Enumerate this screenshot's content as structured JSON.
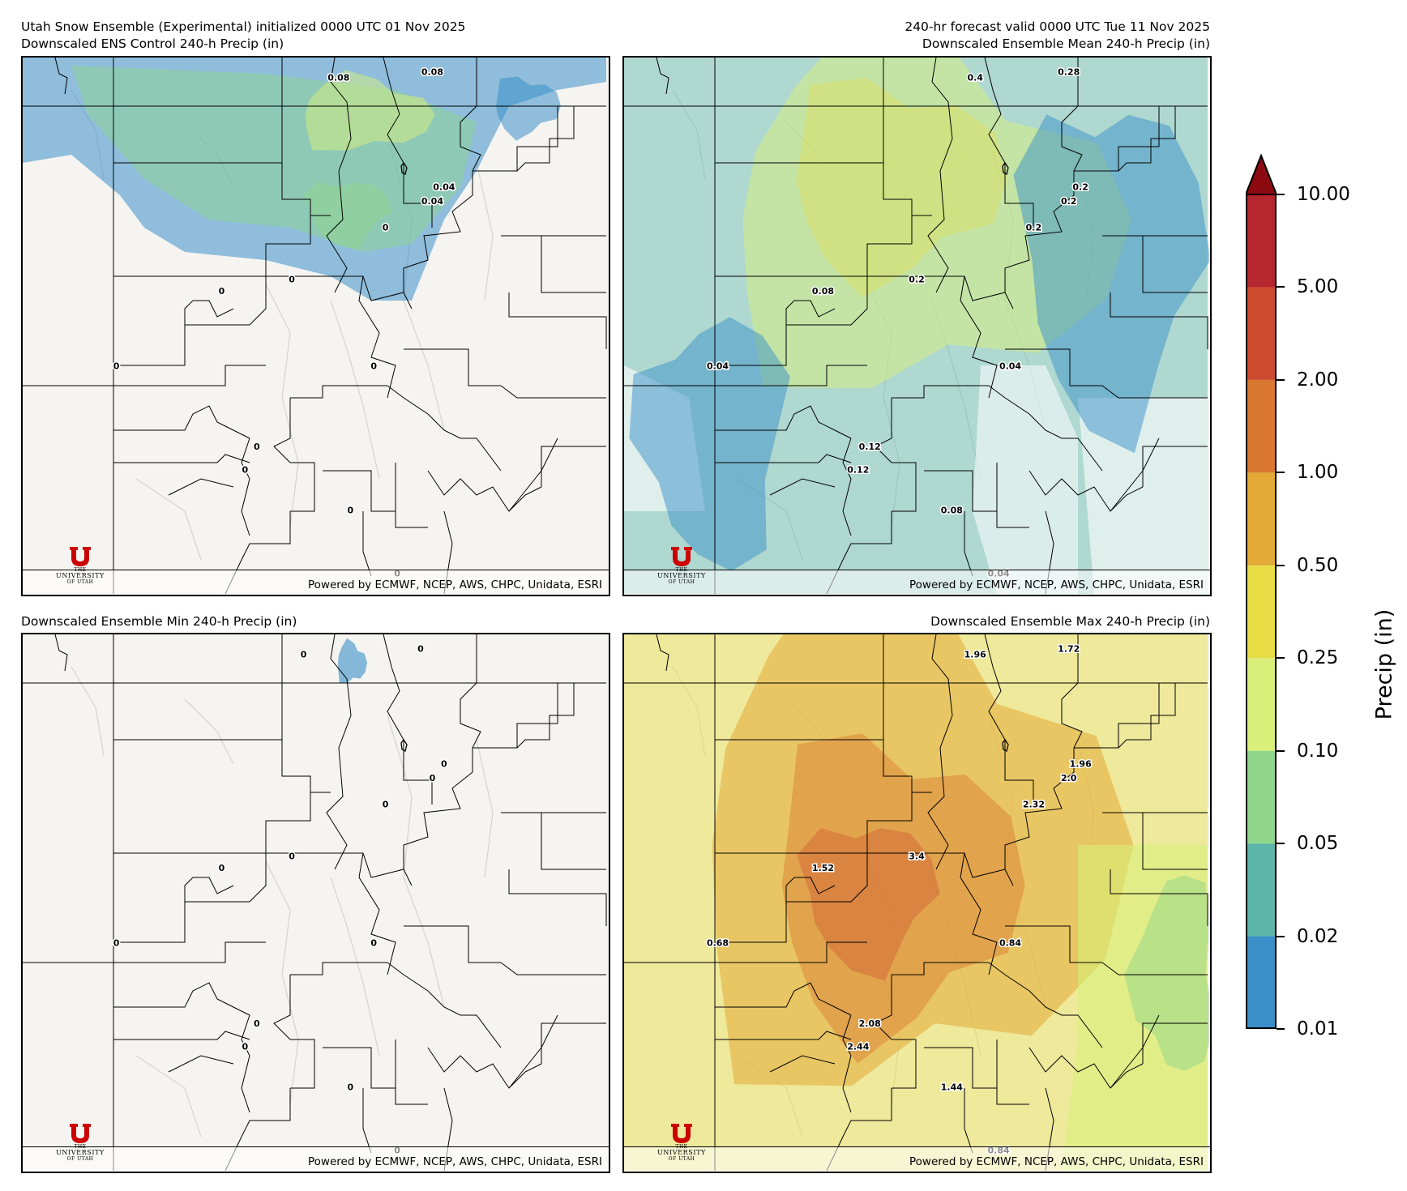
{
  "header": {
    "left_line1": "Utah Snow Ensemble (Experimental) initialized 0000 UTC 01 Nov 2025",
    "left_line2": "Downscaled ENS Control 240-h Precip (in)",
    "right_line1": "240-hr forecast valid 0000 UTC Tue 11 Nov 2025",
    "right_line2": "Downscaled Ensemble Mean 240-h Precip (in)",
    "bottom_left_title": "Downscaled Ensemble Min 240-h Precip (in)",
    "bottom_right_title": "Downscaled Ensemble Max 240-h Precip (in)"
  },
  "footer": {
    "powered_by": "Powered by ECMWF, NCEP, AWS, CHPC, Unidata, ESRI",
    "logo_line1": "THE",
    "logo_line2": "UNIVERSITY",
    "logo_line3": "OF UTAH"
  },
  "colorbar": {
    "title": "Precip (in)",
    "ticks": [
      "0.01",
      "0.02",
      "0.05",
      "0.10",
      "0.25",
      "0.50",
      "1.00",
      "2.00",
      "5.00",
      "10.00"
    ],
    "colors": [
      "#3a8fc8",
      "#5bb5a8",
      "#8fd68a",
      "#d8f07a",
      "#e8dd45",
      "#e3aa35",
      "#da7730",
      "#cc4a2e",
      "#b5262e"
    ],
    "extend_color": "#8b0a10"
  },
  "panels": {
    "control": {
      "labels": [
        {
          "text": "0.08",
          "x": "-111.3",
          "y": "42.85"
        },
        {
          "text": "0.08",
          "x": "-110.5",
          "y": "42.9"
        },
        {
          "text": "0.04",
          "x": "-110.4",
          "y": "41.9"
        },
        {
          "text": "0.04",
          "x": "-110.5",
          "y": "41.78"
        },
        {
          "text": "0",
          "x": "-110.9",
          "y": "41.55"
        },
        {
          "text": "0",
          "x": "-112.3",
          "y": "41.0"
        },
        {
          "text": "0",
          "x": "-111.7",
          "y": "41.1"
        },
        {
          "text": "0",
          "x": "-113.2",
          "y": "40.35"
        },
        {
          "text": "0",
          "x": "-111.0",
          "y": "40.35"
        },
        {
          "text": "0",
          "x": "-112.0",
          "y": "39.65"
        },
        {
          "text": "0",
          "x": "-112.1",
          "y": "39.45"
        },
        {
          "text": "0",
          "x": "-111.2",
          "y": "39.1"
        },
        {
          "text": "0",
          "x": "-110.8",
          "y": "38.55"
        }
      ]
    },
    "mean": {
      "labels": [
        {
          "text": "0.4",
          "x": "-111.0",
          "y": "42.85"
        },
        {
          "text": "0.28",
          "x": "-110.2",
          "y": "42.9"
        },
        {
          "text": "0.2",
          "x": "-110.1",
          "y": "41.9"
        },
        {
          "text": "0.2",
          "x": "-110.2",
          "y": "41.78"
        },
        {
          "text": "0.2",
          "x": "-110.5",
          "y": "41.55"
        },
        {
          "text": "0.08",
          "x": "-112.3",
          "y": "41.0"
        },
        {
          "text": "0.2",
          "x": "-111.5",
          "y": "41.1"
        },
        {
          "text": "0.04",
          "x": "-113.2",
          "y": "40.35"
        },
        {
          "text": "0.04",
          "x": "-110.7",
          "y": "40.35"
        },
        {
          "text": "0.12",
          "x": "-111.9",
          "y": "39.65"
        },
        {
          "text": "0.12",
          "x": "-112.0",
          "y": "39.45"
        },
        {
          "text": "0.08",
          "x": "-111.2",
          "y": "39.1"
        },
        {
          "text": "0.04",
          "x": "-110.8",
          "y": "38.55"
        }
      ]
    },
    "min": {
      "labels": [
        {
          "text": "0",
          "x": "-111.6",
          "y": "42.85"
        },
        {
          "text": "0",
          "x": "-110.6",
          "y": "42.9"
        },
        {
          "text": "0",
          "x": "-110.4",
          "y": "41.9"
        },
        {
          "text": "0",
          "x": "-110.5",
          "y": "41.78"
        },
        {
          "text": "0",
          "x": "-110.9",
          "y": "41.55"
        },
        {
          "text": "0",
          "x": "-112.3",
          "y": "41.0"
        },
        {
          "text": "0",
          "x": "-111.7",
          "y": "41.1"
        },
        {
          "text": "0",
          "x": "-113.2",
          "y": "40.35"
        },
        {
          "text": "0",
          "x": "-111.0",
          "y": "40.35"
        },
        {
          "text": "0",
          "x": "-112.0",
          "y": "39.65"
        },
        {
          "text": "0",
          "x": "-112.1",
          "y": "39.45"
        },
        {
          "text": "0",
          "x": "-111.2",
          "y": "39.1"
        },
        {
          "text": "0",
          "x": "-110.8",
          "y": "38.55"
        }
      ]
    },
    "max": {
      "labels": [
        {
          "text": "1.96",
          "x": "-111.0",
          "y": "42.85"
        },
        {
          "text": "1.72",
          "x": "-110.2",
          "y": "42.9"
        },
        {
          "text": "1.96",
          "x": "-110.1",
          "y": "41.9"
        },
        {
          "text": "2.0",
          "x": "-110.2",
          "y": "41.78"
        },
        {
          "text": "2.32",
          "x": "-110.5",
          "y": "41.55"
        },
        {
          "text": "1.52",
          "x": "-112.3",
          "y": "41.0"
        },
        {
          "text": "3.4",
          "x": "-111.5",
          "y": "41.1"
        },
        {
          "text": "0.68",
          "x": "-113.2",
          "y": "40.35"
        },
        {
          "text": "0.84",
          "x": "-110.7",
          "y": "40.35"
        },
        {
          "text": "2.08",
          "x": "-111.9",
          "y": "39.65"
        },
        {
          "text": "2.44",
          "x": "-112.0",
          "y": "39.45"
        },
        {
          "text": "1.44",
          "x": "-111.2",
          "y": "39.1"
        },
        {
          "text": "0.84",
          "x": "-110.8",
          "y": "38.55"
        }
      ]
    }
  }
}
